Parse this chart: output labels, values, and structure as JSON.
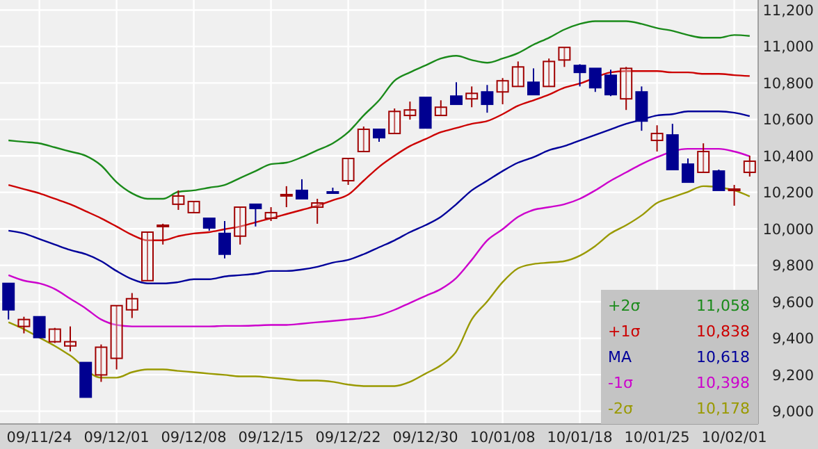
{
  "chart_data": {
    "type": "candlestick",
    "categories": [
      null,
      null,
      "09/11/24",
      null,
      null,
      null,
      null,
      "09/12/01",
      null,
      null,
      null,
      null,
      "09/12/08",
      null,
      null,
      null,
      null,
      "09/12/15",
      null,
      null,
      null,
      null,
      "09/12/22",
      null,
      null,
      null,
      null,
      "09/12/30",
      null,
      null,
      null,
      null,
      "10/01/08",
      null,
      null,
      null,
      null,
      "10/01/18",
      null,
      null,
      null,
      null,
      "10/01/25",
      null,
      null,
      null,
      null,
      "10/02/01",
      null
    ],
    "ohlc": [
      [
        9701,
        9701,
        9503,
        9556
      ],
      [
        9465,
        9518,
        9427,
        9503
      ],
      [
        9518,
        9518,
        9404,
        9404
      ],
      [
        9381,
        9457,
        9374,
        9450
      ],
      [
        9358,
        9465,
        9328,
        9381
      ],
      [
        9267,
        9267,
        9077,
        9077
      ],
      [
        9199,
        9366,
        9161,
        9351
      ],
      [
        9290,
        9579,
        9229,
        9579
      ],
      [
        9556,
        9648,
        9511,
        9617
      ],
      [
        9716,
        9982,
        9716,
        9982
      ],
      [
        10020,
        10028,
        9914,
        10020
      ],
      [
        10135,
        10211,
        10104,
        10180
      ],
      [
        10089,
        10150,
        10089,
        10150
      ],
      [
        10058,
        10058,
        9990,
        10005
      ],
      [
        9975,
        10043,
        9838,
        9861
      ],
      [
        9960,
        10119,
        9914,
        10119
      ],
      [
        10135,
        10135,
        10013,
        10112
      ],
      [
        10058,
        10119,
        10043,
        10089
      ],
      [
        10188,
        10234,
        10119,
        10188
      ],
      [
        10211,
        10272,
        10165,
        10165
      ],
      [
        10119,
        10165,
        10028,
        10142
      ],
      [
        10203,
        10226,
        10196,
        10196
      ],
      [
        10264,
        10386,
        10241,
        10386
      ],
      [
        10424,
        10561,
        10424,
        10546
      ],
      [
        10546,
        10546,
        10477,
        10500
      ],
      [
        10523,
        10660,
        10523,
        10644
      ],
      [
        10622,
        10698,
        10599,
        10652
      ],
      [
        10721,
        10721,
        10553,
        10553
      ],
      [
        10622,
        10705,
        10622,
        10667
      ],
      [
        10728,
        10804,
        10683,
        10683
      ],
      [
        10713,
        10781,
        10667,
        10743
      ],
      [
        10751,
        10789,
        10637,
        10683
      ],
      [
        10751,
        10827,
        10683,
        10812
      ],
      [
        10781,
        10918,
        10781,
        10888
      ],
      [
        10804,
        10880,
        10736,
        10736
      ],
      [
        10781,
        10934,
        10781,
        10918
      ],
      [
        10926,
        10995,
        10888,
        10995
      ],
      [
        10896,
        10903,
        10781,
        10858
      ],
      [
        10880,
        10880,
        10751,
        10774
      ],
      [
        10842,
        10873,
        10728,
        10736
      ],
      [
        10713,
        10888,
        10652,
        10880
      ],
      [
        10751,
        10781,
        10538,
        10591
      ],
      [
        10485,
        10568,
        10424,
        10523
      ],
      [
        10515,
        10576,
        10325,
        10325
      ],
      [
        10355,
        10386,
        10256,
        10256
      ],
      [
        10310,
        10469,
        10310,
        10424
      ],
      [
        10317,
        10325,
        10211,
        10211
      ],
      [
        10218,
        10241,
        10127,
        10218
      ],
      [
        10310,
        10401,
        10287,
        10371
      ]
    ],
    "series": [
      {
        "name": "+2σ",
        "type": "line",
        "color": "#1a8a1a",
        "values": [
          10485,
          10477,
          10469,
          10447,
          10424,
          10401,
          10348,
          10256,
          10195,
          10165,
          10165,
          10203,
          10211,
          10226,
          10241,
          10279,
          10317,
          10355,
          10363,
          10393,
          10431,
          10469,
          10530,
          10622,
          10705,
          10812,
          10858,
          10896,
          10934,
          10949,
          10926,
          10911,
          10934,
          10964,
          11010,
          11048,
          11093,
          11124,
          11139,
          11139,
          11139,
          11124,
          11101,
          11086,
          11063,
          11048,
          11048,
          11063,
          11058
        ]
      },
      {
        "name": "+1σ",
        "type": "line",
        "color": "#cc0000",
        "values": [
          10241,
          10218,
          10195,
          10165,
          10135,
          10097,
          10058,
          10013,
          9967,
          9937,
          9937,
          9960,
          9975,
          9982,
          9998,
          10013,
          10036,
          10058,
          10081,
          10104,
          10127,
          10157,
          10188,
          10264,
          10340,
          10401,
          10454,
          10492,
          10530,
          10553,
          10576,
          10591,
          10629,
          10675,
          10705,
          10736,
          10774,
          10797,
          null,
          10858,
          10865,
          10865,
          10865,
          10858,
          10858,
          10850,
          10850,
          10843,
          10838
        ]
      },
      {
        "name": "MA",
        "type": "line",
        "color": "#00009a",
        "values": [
          9990,
          9975,
          9944,
          9914,
          9884,
          9861,
          9823,
          9769,
          9724,
          9701,
          9701,
          9708,
          9724,
          9724,
          9739,
          9746,
          9754,
          9769,
          9769,
          9777,
          9792,
          9815,
          9830,
          9861,
          9899,
          9937,
          9982,
          10020,
          10066,
          10135,
          10211,
          10264,
          10317,
          10363,
          10393,
          10431,
          10454,
          10485,
          10515,
          10546,
          10576,
          10599,
          10622,
          10629,
          10644,
          10644,
          10644,
          10637,
          10618
        ]
      },
      {
        "name": "-1σ",
        "type": "line",
        "color": "#cc00cc",
        "values": [
          9746,
          9716,
          9701,
          9670,
          9617,
          9564,
          9503,
          9473,
          9465,
          9465,
          9465,
          9465,
          9465,
          9465,
          9468,
          9468,
          9470,
          9473,
          9473,
          9480,
          9488,
          9495,
          9503,
          9511,
          9526,
          9556,
          9594,
          9632,
          9670,
          9731,
          9830,
          9937,
          9998,
          10066,
          10104,
          10119,
          10135,
          10165,
          10211,
          10264,
          10310,
          10355,
          10393,
          null,
          10439,
          10439,
          10439,
          10424,
          10398
        ]
      },
      {
        "name": "-2σ",
        "type": "line",
        "color": "#999900",
        "values": [
          9488,
          9450,
          9404,
          9358,
          9305,
          null,
          9184,
          9184,
          9214,
          9229,
          9229,
          9221,
          9214,
          9206,
          9199,
          9191,
          9191,
          9184,
          9176,
          9168,
          9168,
          9161,
          9146,
          9138,
          9138,
          9138,
          9161,
          9206,
          9252,
          9328,
          9503,
          9602,
          9708,
          9784,
          9807,
          9815,
          9823,
          9853,
          9906,
          9975,
          10020,
          10074,
          10142,
          10173,
          10203,
          10234,
          null,
          10211,
          10178
        ]
      }
    ],
    "ylim": [
      8930,
      11255
    ],
    "yticks": [
      {
        "value": 9000,
        "label": "9,000"
      },
      {
        "value": 9200,
        "label": "9,200"
      },
      {
        "value": 9400,
        "label": "9,400"
      },
      {
        "value": 9600,
        "label": "9,600"
      },
      {
        "value": 9800,
        "label": "9,800"
      },
      {
        "value": 10000,
        "label": "10,000"
      },
      {
        "value": 10200,
        "label": "10,200"
      },
      {
        "value": 10400,
        "label": "10,400"
      },
      {
        "value": 10600,
        "label": "10,600"
      },
      {
        "value": 10800,
        "label": "10,800"
      },
      {
        "value": 11000,
        "label": "11,000"
      },
      {
        "value": 11200,
        "label": "11,200"
      }
    ],
    "annotations": [
      "11,058",
      "10,838",
      "10,618",
      "10,398",
      "10,178"
    ],
    "grid": true,
    "legend": "bottom right",
    "marker": "none",
    "line_style": "solid"
  }
}
